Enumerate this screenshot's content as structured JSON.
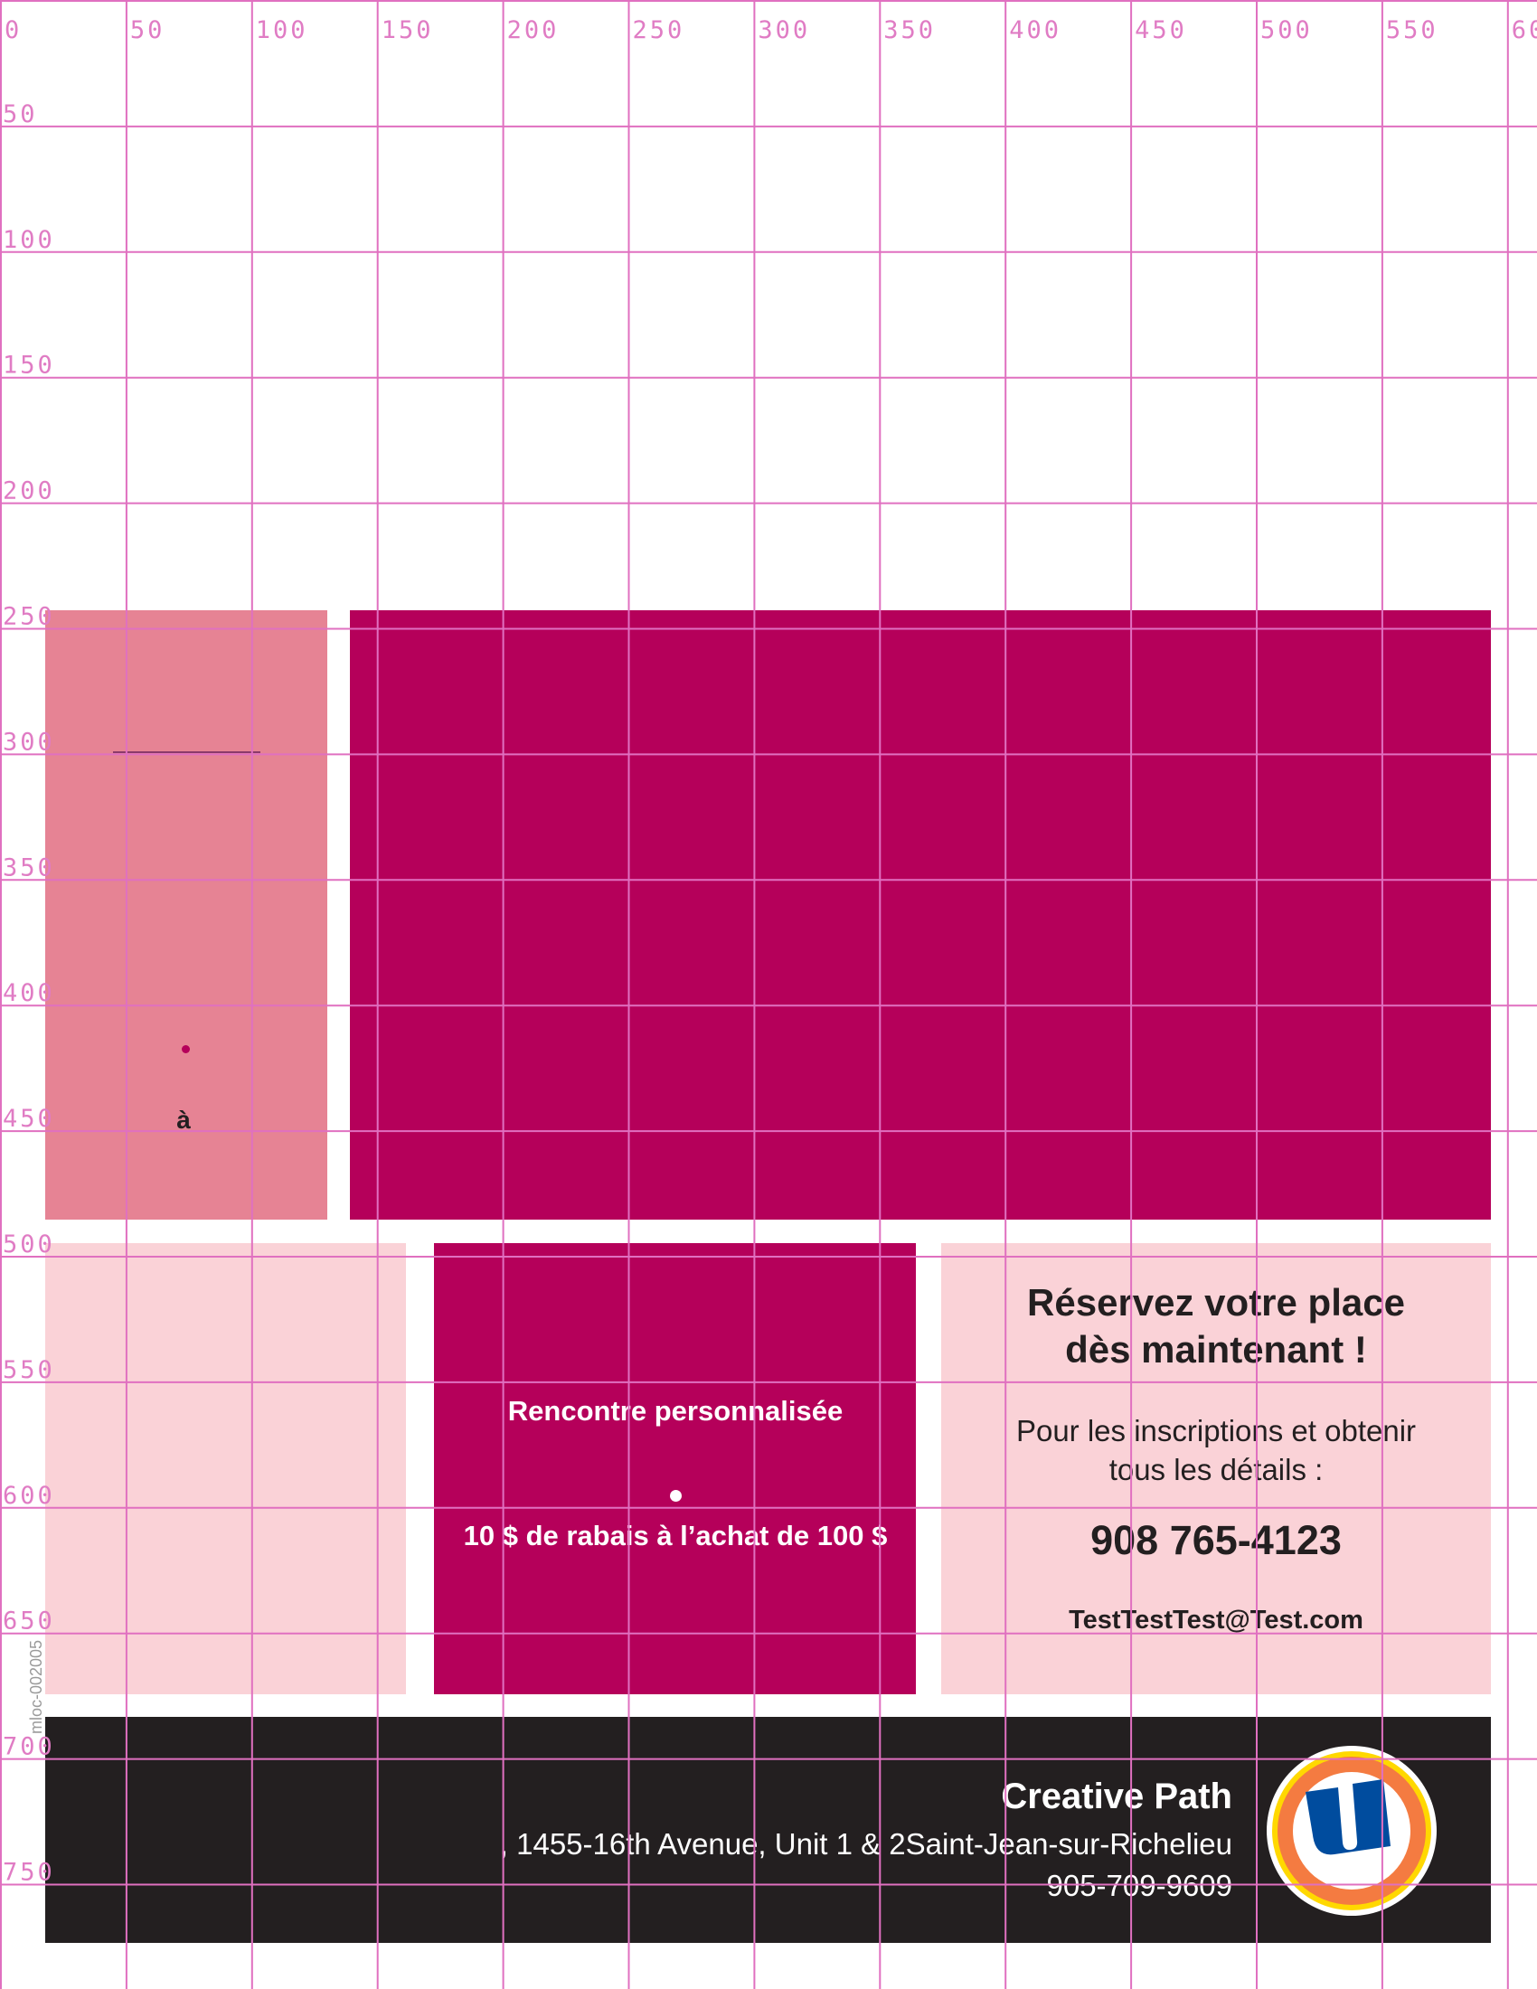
{
  "colors": {
    "grid": "#e070c0",
    "left_panel": "#e68394",
    "magenta": "#b5005a",
    "light_pink": "#fad2d7",
    "footer": "#231f20"
  },
  "grid": {
    "top_labels": [
      "0",
      "50",
      "100",
      "150",
      "200",
      "250",
      "300",
      "350",
      "400",
      "450",
      "500",
      "550",
      "60"
    ],
    "left_labels": [
      "50",
      "100",
      "150",
      "200",
      "250",
      "300",
      "350",
      "400",
      "450",
      "500",
      "550",
      "600",
      "650",
      "700",
      "750"
    ]
  },
  "left_panel": {
    "letter": "à"
  },
  "offer": {
    "title": "Rencontre personnalisée",
    "discount": "10 $ de rabais à l’achat de 100 $"
  },
  "reserve": {
    "heading_line1": "Réservez votre place",
    "heading_line2": "dès maintenant !",
    "info_line1": "Pour les inscriptions et obtenir",
    "info_line2": "tous les détails :",
    "phone": "908 765-4123",
    "email": "TestTestTest@Test.com"
  },
  "footer": {
    "company": "Creative Path",
    "address": ", 1455-16th Avenue, Unit 1 & 2Saint-Jean-sur-Richelieu",
    "phone": "905-709-9609",
    "logo": "u-logo-circle"
  },
  "side_code": "mloc-002005"
}
